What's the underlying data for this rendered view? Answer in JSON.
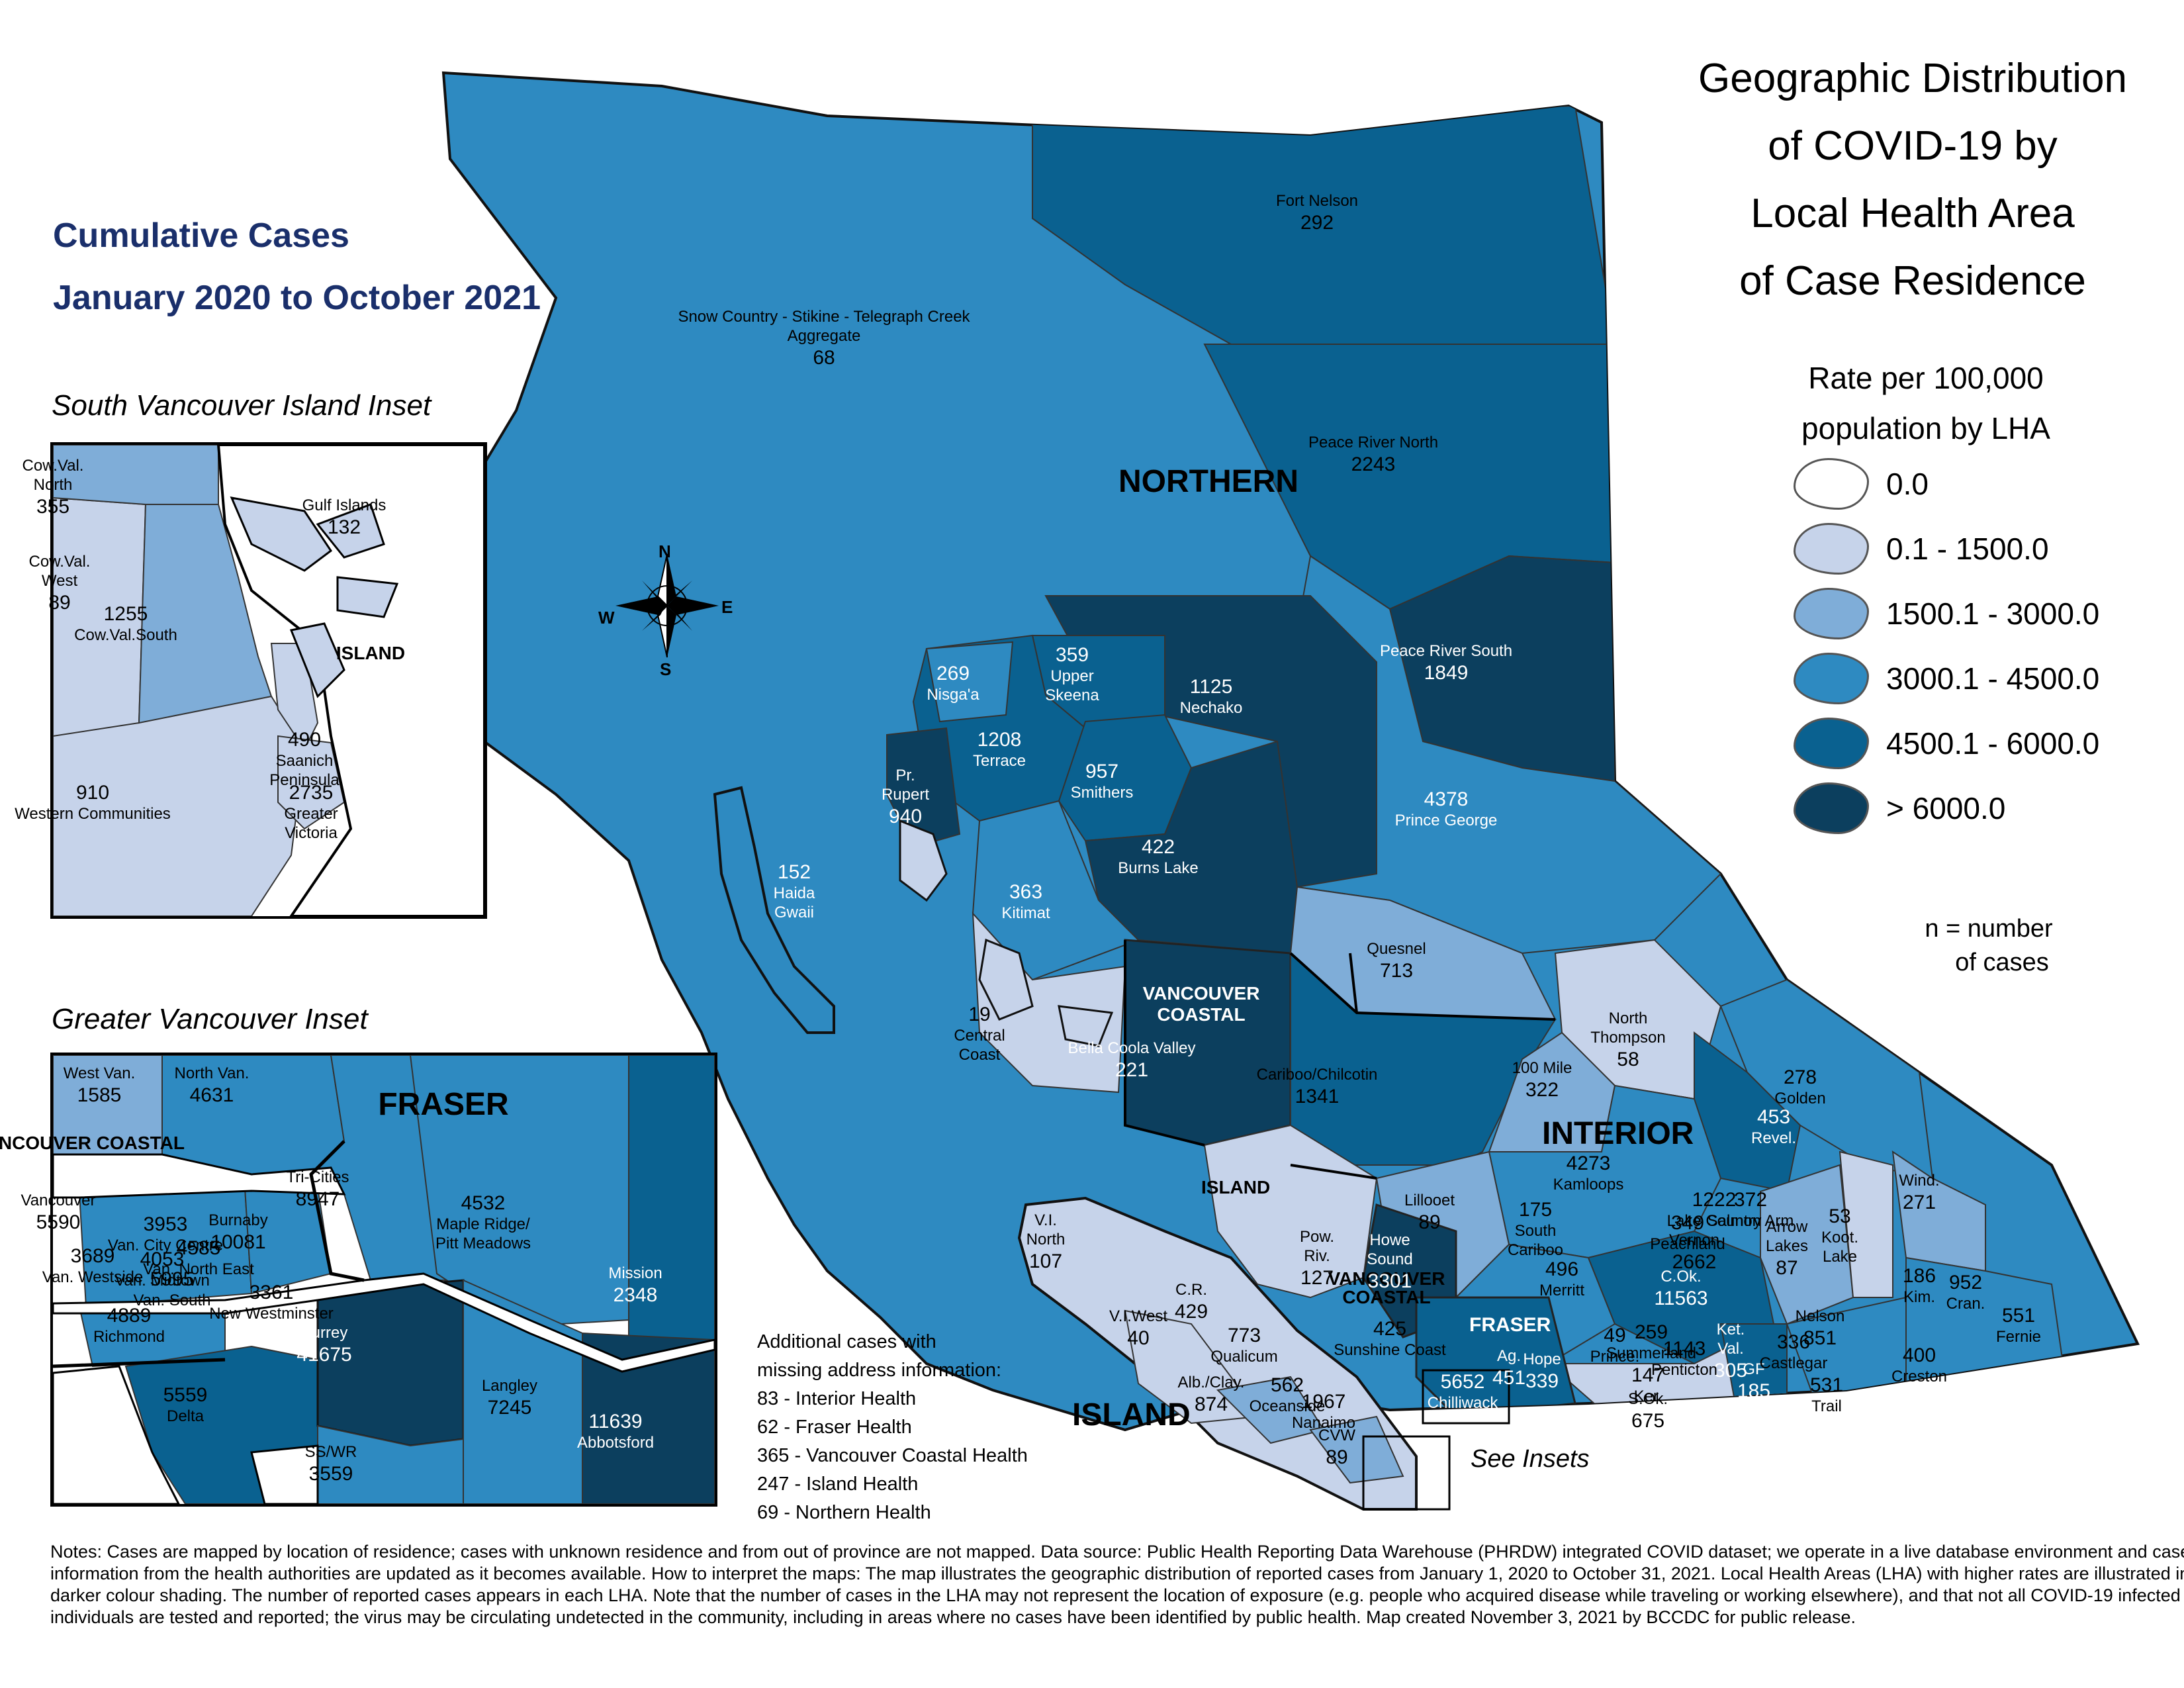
{
  "title": {
    "line1": "Geographic Distribution",
    "line2": "of COVID-19 by",
    "line3": "Local Health Area",
    "line4": "of Case Residence"
  },
  "subtitle": {
    "line1": "Cumulative Cases",
    "line2": "January 2020 to October 2021"
  },
  "legend": {
    "heading1": "Rate per 100,000",
    "heading2": "population by LHA",
    "classes": [
      {
        "label": "0.0",
        "color": "#ffffff"
      },
      {
        "label": "0.1 - 1500.0",
        "color": "#c6d3ea"
      },
      {
        "label": "1500.1 - 3000.0",
        "color": "#7fadd8"
      },
      {
        "label": "3000.1 - 4500.0",
        "color": "#2e8ac1"
      },
      {
        "label": "4500.1 - 6000.0",
        "color": "#0a6190"
      },
      {
        "label": "> 6000.0",
        "color": "#0c3f5e"
      }
    ],
    "n_note1": "n = number",
    "n_note2": "of cases"
  },
  "insets": {
    "south_van_island_title": "South Vancouver Island Inset",
    "greater_van_title": "Greater Vancouver Inset",
    "see_insets": "See Insets"
  },
  "compass": {
    "n": "N",
    "s": "S",
    "e": "E",
    "w": "W"
  },
  "regions": {
    "northern": "NORTHERN",
    "interior": "INTERIOR",
    "island": "ISLAND",
    "island_small": "ISLAND",
    "vancoastal_a": "VANCOUVER",
    "vancoastal_b": "COASTAL",
    "vancoastal_c": "VANCOUVER",
    "vancoastal_d": "COASTAL",
    "fraser": "FRASER"
  },
  "lha_main": [
    {
      "label": "Fort Nelson",
      "n": "292"
    },
    {
      "label": "Snow Country - Stikine - Telegraph Creek",
      "label2": "Aggregate",
      "n": "68"
    },
    {
      "label": "Peace River North",
      "n": "2243"
    },
    {
      "label": "Peace River South",
      "n": "1849"
    },
    {
      "label": "Nisga'a",
      "n": "269"
    },
    {
      "label": "Upper",
      "label2": "Skeena",
      "n": "359"
    },
    {
      "label": "Nechako",
      "n": "1125"
    },
    {
      "label": "Terrace",
      "n": "1208"
    },
    {
      "label": "Smithers",
      "n": "957"
    },
    {
      "label": "Pr.",
      "label2": "Rupert",
      "n": "940"
    },
    {
      "label": "Burns Lake",
      "n": "422"
    },
    {
      "label": "Prince George",
      "n": "4378"
    },
    {
      "label": "Haida",
      "label2": "Gwaii",
      "n": "152"
    },
    {
      "label": "Kitimat",
      "n": "363"
    },
    {
      "label": "Quesnel",
      "n": "713"
    },
    {
      "label": "Central",
      "label2": "Coast",
      "n": "19"
    },
    {
      "label": "Bella Coola Valley",
      "n": "221"
    },
    {
      "label": "Cariboo/Chilcotin",
      "n": "1341"
    },
    {
      "label": "100 Mile",
      "n": "322"
    },
    {
      "label": "North",
      "label2": "Thompson",
      "n": "58"
    },
    {
      "label": "Golden",
      "n": "278"
    },
    {
      "label": "Revel.",
      "n": "453"
    },
    {
      "label": "Kamloops",
      "n": "4273"
    },
    {
      "label": "Lillooet",
      "n": "89"
    },
    {
      "label": "South",
      "label2": "Cariboo",
      "n": "175"
    },
    {
      "label": "Vernon",
      "n": "2662"
    },
    {
      "label": "Arrow",
      "label2": "Lakes",
      "n": "87"
    },
    {
      "label": "Koot.",
      "label2": "Lake",
      "n": "53"
    },
    {
      "label": "Wind.",
      "n": "271"
    },
    {
      "label": "V.I.",
      "label2": "North",
      "n": "107"
    },
    {
      "label": "Pow.",
      "label2": "Riv.",
      "n": "127"
    },
    {
      "label": "Howe",
      "label2": "Sound",
      "n": "3301"
    },
    {
      "label": "Merritt",
      "n": "496"
    },
    {
      "label": "C.Ok.",
      "n": "11563"
    },
    {
      "label": "Nelson",
      "n": "851"
    },
    {
      "label": "Kim.",
      "n": "186"
    },
    {
      "label": "Cran.",
      "n": "952"
    },
    {
      "label": "Fernie",
      "n": "551"
    },
    {
      "label": "C.R.",
      "n": "429"
    },
    {
      "label": "V.I.West",
      "n": "40"
    },
    {
      "label": "Sunshine Coast",
      "n": "425"
    },
    {
      "label": "Alb./Clay.",
      "n": "874"
    },
    {
      "label": "Prince.",
      "n": "49"
    },
    {
      "label": "Ker.",
      "n": "147"
    },
    {
      "label": "Ket.",
      "label2": "Val.",
      "n": "305"
    },
    {
      "label": "GF",
      "n": "185"
    },
    {
      "label": "Trail",
      "n": "531"
    },
    {
      "label": "Creston",
      "n": "400"
    },
    {
      "label": "Ag.",
      "n": "451"
    },
    {
      "label": "Hope",
      "n": "339"
    },
    {
      "label": "Chilliwack",
      "n": "5652"
    },
    {
      "label": "S.Ok.",
      "n": "675"
    },
    {
      "label": "CVW",
      "n": "89"
    },
    {
      "label": "Nanaimo",
      "n": "1967"
    },
    {
      "label": "Qualicum",
      "n": "773"
    },
    {
      "label": "Oceanside",
      "n": "562"
    },
    {
      "label": "Summerland",
      "n": "259"
    },
    {
      "label": "Penticton",
      "n": "1143"
    },
    {
      "label": "Peachland",
      "n": "349"
    },
    {
      "label": "Lake Country",
      "n": "1222"
    },
    {
      "label": "Salmon Arm",
      "n": "372"
    },
    {
      "label": "Castlegar",
      "n": "336"
    }
  ],
  "lha_south_island": [
    {
      "label": "Cow.Val.",
      "label2": "North",
      "n": "355"
    },
    {
      "label": "Gulf Islands",
      "n": "132"
    },
    {
      "label": "Cow.Val.",
      "label2": "West",
      "n": "89"
    },
    {
      "label": "Cow.Val.South",
      "n": "1255"
    },
    {
      "label": "ISLAND"
    },
    {
      "label": "Saanich",
      "label2": "Peninsula",
      "n": "490"
    },
    {
      "label": "Western Communities",
      "n": "910"
    },
    {
      "label": "Greater",
      "label2": "Victoria",
      "n": "2735"
    }
  ],
  "lha_greater_van": [
    {
      "label": "West Van.",
      "n": "1585"
    },
    {
      "label": "North Van.",
      "n": "4631"
    },
    {
      "label": "VANCOUVER COASTAL"
    },
    {
      "label": "FRASER"
    },
    {
      "label": "Tri-Cities",
      "n": "8947"
    },
    {
      "label": "Maple Ridge/",
      "label2": "Pitt Meadows",
      "n": "4532"
    },
    {
      "label": "Mission",
      "n": "2348"
    },
    {
      "label": "Vancouver",
      "n": "5590"
    },
    {
      "label": "Burnaby",
      "n": "10081"
    },
    {
      "label": "Van. City Centre",
      "n": "3953"
    },
    {
      "label": "Van. North East",
      "n": "4585"
    },
    {
      "label": "Van. Westside",
      "n": "3689"
    },
    {
      "label": "Van. Midtown",
      "n": "4053"
    },
    {
      "label": "Van. South",
      "n": "5995"
    },
    {
      "label": "New Westminster",
      "n": "3361"
    },
    {
      "label": "Richmond",
      "n": "4889"
    },
    {
      "label": "Surrey",
      "n": "41675"
    },
    {
      "label": "Delta",
      "n": "5559"
    },
    {
      "label": "Langley",
      "n": "7245"
    },
    {
      "label": "Abbotsford",
      "n": "11639"
    },
    {
      "label": "SS/WR",
      "n": "3559"
    }
  ],
  "additional": {
    "heading1": "Additional cases with",
    "heading2": "missing address information:",
    "lines": [
      "83 - Interior Health",
      "62 - Fraser Health",
      "365 - Vancouver Coastal Health",
      "247 - Island Health",
      "69 - Northern Health"
    ]
  },
  "notes": "Notes: Cases are mapped by location of residence; cases with unknown residence and from out of province are not mapped. Data source: Public Health Reporting Data Warehouse (PHRDW) integrated COVID dataset; we operate in a live database environment and case information from the health authorities are updated as it becomes available. How to interpret the maps: The map illustrates the geographic distribution of reported cases from January 1, 2020 to October 31, 2021. Local Health Areas (LHA) with higher rates are illustrated in darker colour shading. The number of reported cases appears in each LHA. Note that the number of cases in the LHA may not represent the location of exposure (e.g. people who acquired disease while traveling or working elsewhere), and that not all COVID-19 infected individuals are tested and reported; the virus may be circulating undetected in the community, including in areas where no cases have been identified by public health. Map created November 3, 2021 by BCCDC for public release."
}
